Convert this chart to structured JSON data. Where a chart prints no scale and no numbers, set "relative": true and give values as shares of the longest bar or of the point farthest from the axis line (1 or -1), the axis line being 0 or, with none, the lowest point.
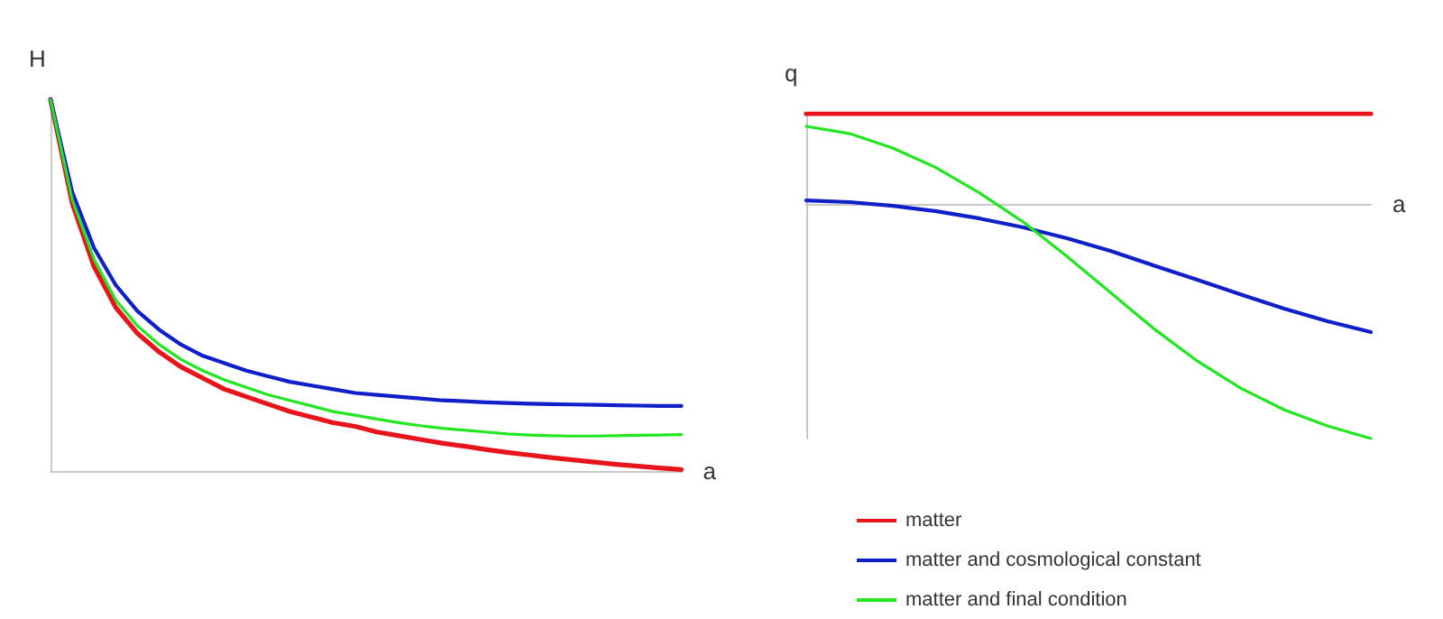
{
  "chart_data": [
    {
      "type": "line",
      "xlabel": "a",
      "ylabel": "H",
      "relative": true,
      "grid": false,
      "legend": false,
      "marker": "none",
      "line_style": "solid",
      "categories": [
        null,
        null,
        null,
        null,
        null,
        null,
        null,
        null,
        null,
        null,
        null,
        null,
        null,
        null,
        null,
        null,
        null,
        null,
        null,
        null,
        null,
        null,
        null,
        null,
        null,
        null,
        null,
        null,
        null,
        null
      ],
      "series": [
        {
          "color": "#e8141b",
          "values": [
            1,
            0.72,
            0.55,
            0.44,
            0.37,
            0.32,
            0.28,
            0.25,
            0.22,
            0.2,
            0.18,
            0.16,
            0.145,
            0.13,
            0.12,
            0.105,
            0.095,
            0.085,
            0.075,
            0.067,
            0.058,
            0.05,
            0.043,
            0.036,
            0.03,
            0.024,
            0.018,
            0.013,
            0.008,
            0.004
          ]
        },
        {
          "color": "#1020c8",
          "values": [
            1,
            0.75,
            0.6,
            0.5,
            0.43,
            0.38,
            0.34,
            0.31,
            0.29,
            0.27,
            0.255,
            0.24,
            0.23,
            0.22,
            0.21,
            0.205,
            0.2,
            0.195,
            0.19,
            0.188,
            0.185,
            0.183,
            0.181,
            0.18,
            0.179,
            0.178,
            0.177,
            0.176,
            0.175,
            0.175
          ]
        },
        {
          "color": "#22e622",
          "values": [
            1,
            0.73,
            0.57,
            0.46,
            0.39,
            0.34,
            0.3,
            0.27,
            0.245,
            0.225,
            0.205,
            0.19,
            0.175,
            0.16,
            0.15,
            0.14,
            0.13,
            0.122,
            0.115,
            0.11,
            0.105,
            0.1,
            0.097,
            0.095,
            0.094,
            0.094,
            0.095,
            0.096,
            0.097,
            0.098
          ]
        }
      ]
    },
    {
      "type": "line",
      "xlabel": "a",
      "ylabel": "q",
      "relative": true,
      "grid": false,
      "legend": "bottom",
      "marker": "none",
      "line_style": "solid",
      "categories": [
        null,
        null,
        null,
        null,
        null,
        null,
        null,
        null,
        null,
        null,
        null,
        null,
        null,
        null
      ],
      "series": [
        {
          "name": "matter",
          "color": "#e8141b",
          "values": [
            0.385,
            0.385,
            0.385,
            0.385,
            0.385,
            0.385,
            0.385,
            0.385,
            0.385,
            0.385,
            0.385,
            0.385,
            0.385,
            0.385
          ]
        },
        {
          "name": "matter and cosmological constant",
          "color": "#1020c8",
          "values": [
            0.015,
            0.008,
            -0.008,
            -0.031,
            -0.062,
            -0.1,
            -0.146,
            -0.2,
            -0.262,
            -0.323,
            -0.385,
            -0.446,
            -0.5,
            -0.546
          ]
        },
        {
          "name": "matter and final condition",
          "color": "#22e622",
          "values": [
            0.331,
            0.3,
            0.238,
            0.154,
            0.046,
            -0.077,
            -0.223,
            -0.377,
            -0.531,
            -0.669,
            -0.785,
            -0.877,
            -0.946,
            -1
          ]
        }
      ]
    }
  ]
}
